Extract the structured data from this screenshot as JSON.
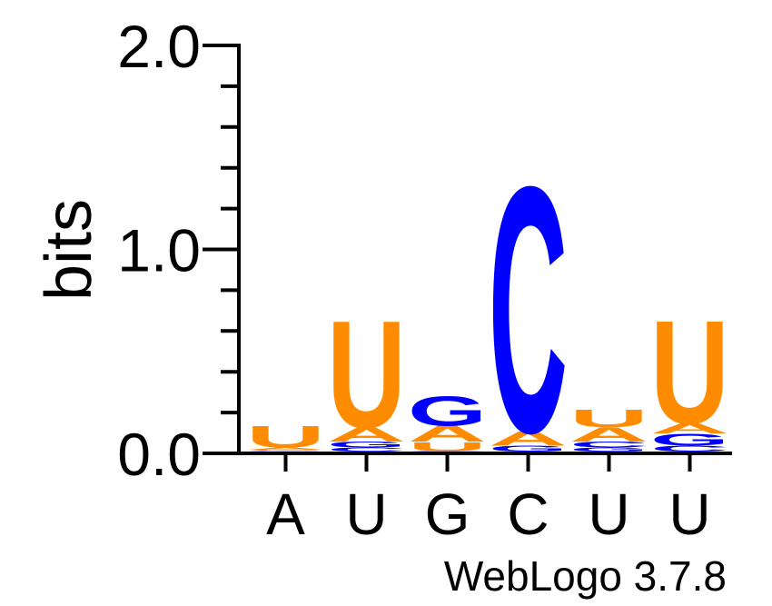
{
  "chart_data": {
    "type": "sequence-logo",
    "ylabel": "bits",
    "ylim": [
      0,
      2
    ],
    "y_ticks": [
      "0.0",
      "1.0",
      "2.0"
    ],
    "credit": "WebLogo 3.7.8",
    "colors": {
      "A": "#ff8c00",
      "U": "#ff8c00",
      "G": "#0000ff",
      "C": "#0000ff"
    },
    "positions": [
      {
        "label": "A",
        "stack": [
          {
            "letter": "G",
            "bits": 0.004
          },
          {
            "letter": "C",
            "bits": 0.004
          },
          {
            "letter": "A",
            "bits": 0.012
          },
          {
            "letter": "U",
            "bits": 0.11
          }
        ]
      },
      {
        "label": "U",
        "stack": [
          {
            "letter": "C",
            "bits": 0.02
          },
          {
            "letter": "G",
            "bits": 0.03
          },
          {
            "letter": "A",
            "bits": 0.07
          },
          {
            "letter": "U",
            "bits": 0.54
          }
        ]
      },
      {
        "label": "G",
        "stack": [
          {
            "letter": "C",
            "bits": 0.003
          },
          {
            "letter": "U",
            "bits": 0.045
          },
          {
            "letter": "A",
            "bits": 0.08
          },
          {
            "letter": "G",
            "bits": 0.15
          }
        ]
      },
      {
        "label": "C",
        "stack": [
          {
            "letter": "G",
            "bits": 0.03
          },
          {
            "letter": "A",
            "bits": 0.07
          },
          {
            "letter": "C",
            "bits": 1.24
          }
        ]
      },
      {
        "label": "U",
        "stack": [
          {
            "letter": "G",
            "bits": 0.02
          },
          {
            "letter": "C",
            "bits": 0.03
          },
          {
            "letter": "A",
            "bits": 0.07
          },
          {
            "letter": "U",
            "bits": 0.09
          }
        ]
      },
      {
        "label": "U",
        "stack": [
          {
            "letter": "C",
            "bits": 0.03
          },
          {
            "letter": "G",
            "bits": 0.06
          },
          {
            "letter": "A",
            "bits": 0.05
          },
          {
            "letter": "U",
            "bits": 0.52
          }
        ]
      }
    ]
  }
}
